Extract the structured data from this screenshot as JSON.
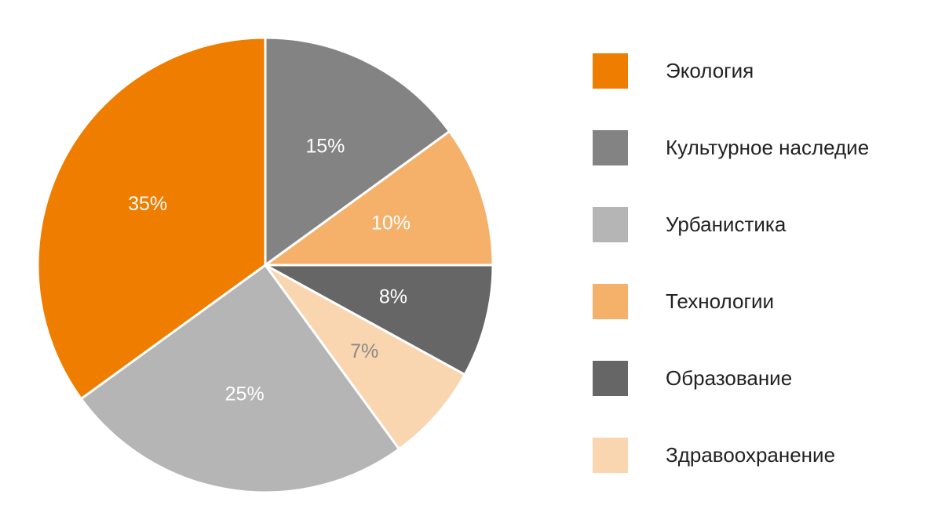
{
  "chart_data": {
    "type": "pie",
    "categories": [
      "Культурное наследие",
      "Технологии",
      "Образование",
      "Здравоохранение",
      "Урбанистика",
      "Экология"
    ],
    "values": [
      15,
      10,
      8,
      7,
      25,
      35
    ],
    "value_labels": [
      "15%",
      "10%",
      "8%",
      "7%",
      "25%",
      "35%"
    ],
    "colors": [
      "#838383",
      "#f5b06a",
      "#676666",
      "#f9d5b0",
      "#b6b5b5",
      "#ef7d00"
    ],
    "label_colors": [
      "#ffffff",
      "#ffffff",
      "#ffffff",
      "#8a8a8a",
      "#ffffff",
      "#ffffff"
    ],
    "legend_order": [
      5,
      0,
      4,
      1,
      2,
      3
    ],
    "legend": "right"
  }
}
